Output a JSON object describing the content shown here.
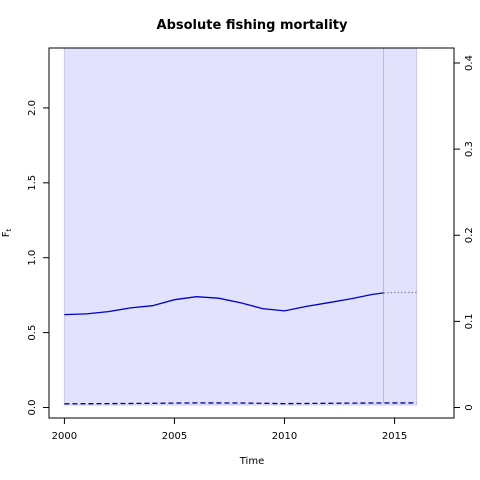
{
  "chart_data": {
    "type": "line",
    "title": "Absolute fishing mortality",
    "xlabel": "Time",
    "ylabel_main": "F",
    "ylabel_sub": "t",
    "xlim": [
      1999.3,
      2017.7
    ],
    "ylim_left": [
      -0.07,
      2.4
    ],
    "ylim_right": [
      0,
      0.405
    ],
    "x_ticks": [
      2000,
      2005,
      2010,
      2015
    ],
    "y_ticks_left": [
      0.0,
      0.5,
      1.0,
      1.5,
      2.0
    ],
    "y_ticks_left_labels": [
      "0.0",
      "0.5",
      "1.0",
      "1.5",
      "2.0"
    ],
    "y_ticks_right": [
      0,
      0.1,
      0.2,
      0.3,
      0.4
    ],
    "y_ticks_right_labels": [
      "0",
      "0.1",
      "0.2",
      "0.3",
      "0.4"
    ],
    "ci_band": {
      "x_start": 2000,
      "x_end": 2016,
      "color": "#e2e2fc",
      "edge_color": "#c9c9f2"
    },
    "vertical_line_x": 2014.5,
    "series": [
      {
        "style": "solid",
        "color": "#0000cc",
        "x": [
          2000,
          2001,
          2002,
          2003,
          2004,
          2005,
          2006,
          2007,
          2008,
          2009,
          2010,
          2011,
          2012,
          2013,
          2014,
          2014.5
        ],
        "y": [
          0.62,
          0.625,
          0.64,
          0.665,
          0.68,
          0.72,
          0.74,
          0.73,
          0.7,
          0.66,
          0.645,
          0.675,
          0.7,
          0.725,
          0.755,
          0.765
        ]
      },
      {
        "style": "dotted",
        "color": "#8888bb",
        "x": [
          2014.5,
          2015,
          2016
        ],
        "y": [
          0.765,
          0.768,
          0.768
        ]
      },
      {
        "style": "dashed",
        "color": "#000099",
        "x": [
          2000,
          2002,
          2004,
          2006,
          2008,
          2010,
          2012,
          2014,
          2016
        ],
        "y": [
          0.025,
          0.026,
          0.028,
          0.031,
          0.03,
          0.026,
          0.028,
          0.03,
          0.031
        ]
      }
    ]
  }
}
